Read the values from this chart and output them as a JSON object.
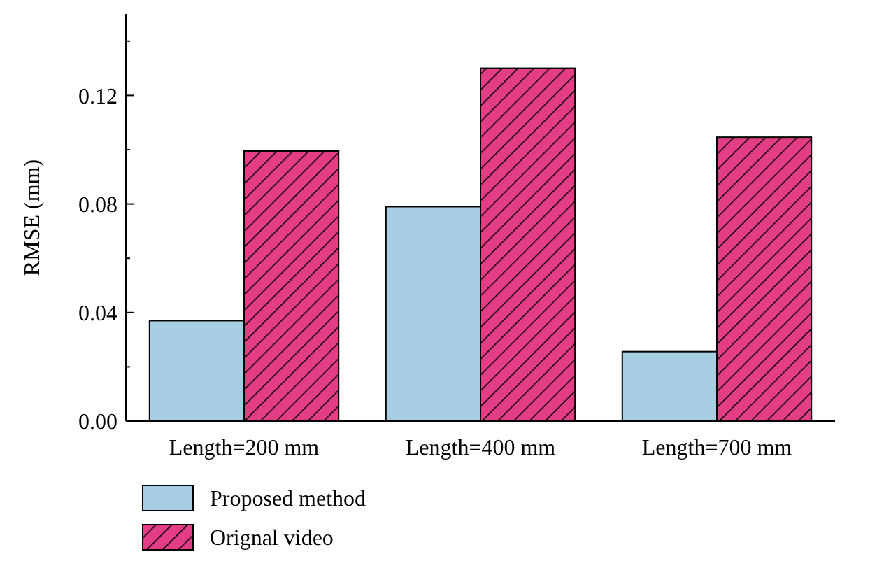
{
  "chart_data": {
    "type": "bar",
    "ylabel": "RMSE (mm)",
    "categories": [
      "Length=200 mm",
      "Length=400 mm",
      "Length=700 mm"
    ],
    "series": [
      {
        "name": "Proposed method",
        "color": "#a6cde2",
        "values": [
          0.037,
          0.079,
          0.0256
        ]
      },
      {
        "name": "Orignal video",
        "color": "#e23d85",
        "values": [
          0.0995,
          0.13,
          0.1046
        ]
      }
    ],
    "ylim": [
      0,
      0.15
    ],
    "yticks": [
      {
        "value": 0,
        "label": "0.00"
      },
      {
        "value": 0.02,
        "label": null
      },
      {
        "value": 0.04,
        "label": "0.04"
      },
      {
        "value": 0.06,
        "label": null
      },
      {
        "value": 0.08,
        "label": "0.08"
      },
      {
        "value": 0.1,
        "label": null
      },
      {
        "value": 0.12,
        "label": "0.12"
      },
      {
        "value": 0.14,
        "label": null
      }
    ],
    "grid": false,
    "legend": "bottom left"
  }
}
